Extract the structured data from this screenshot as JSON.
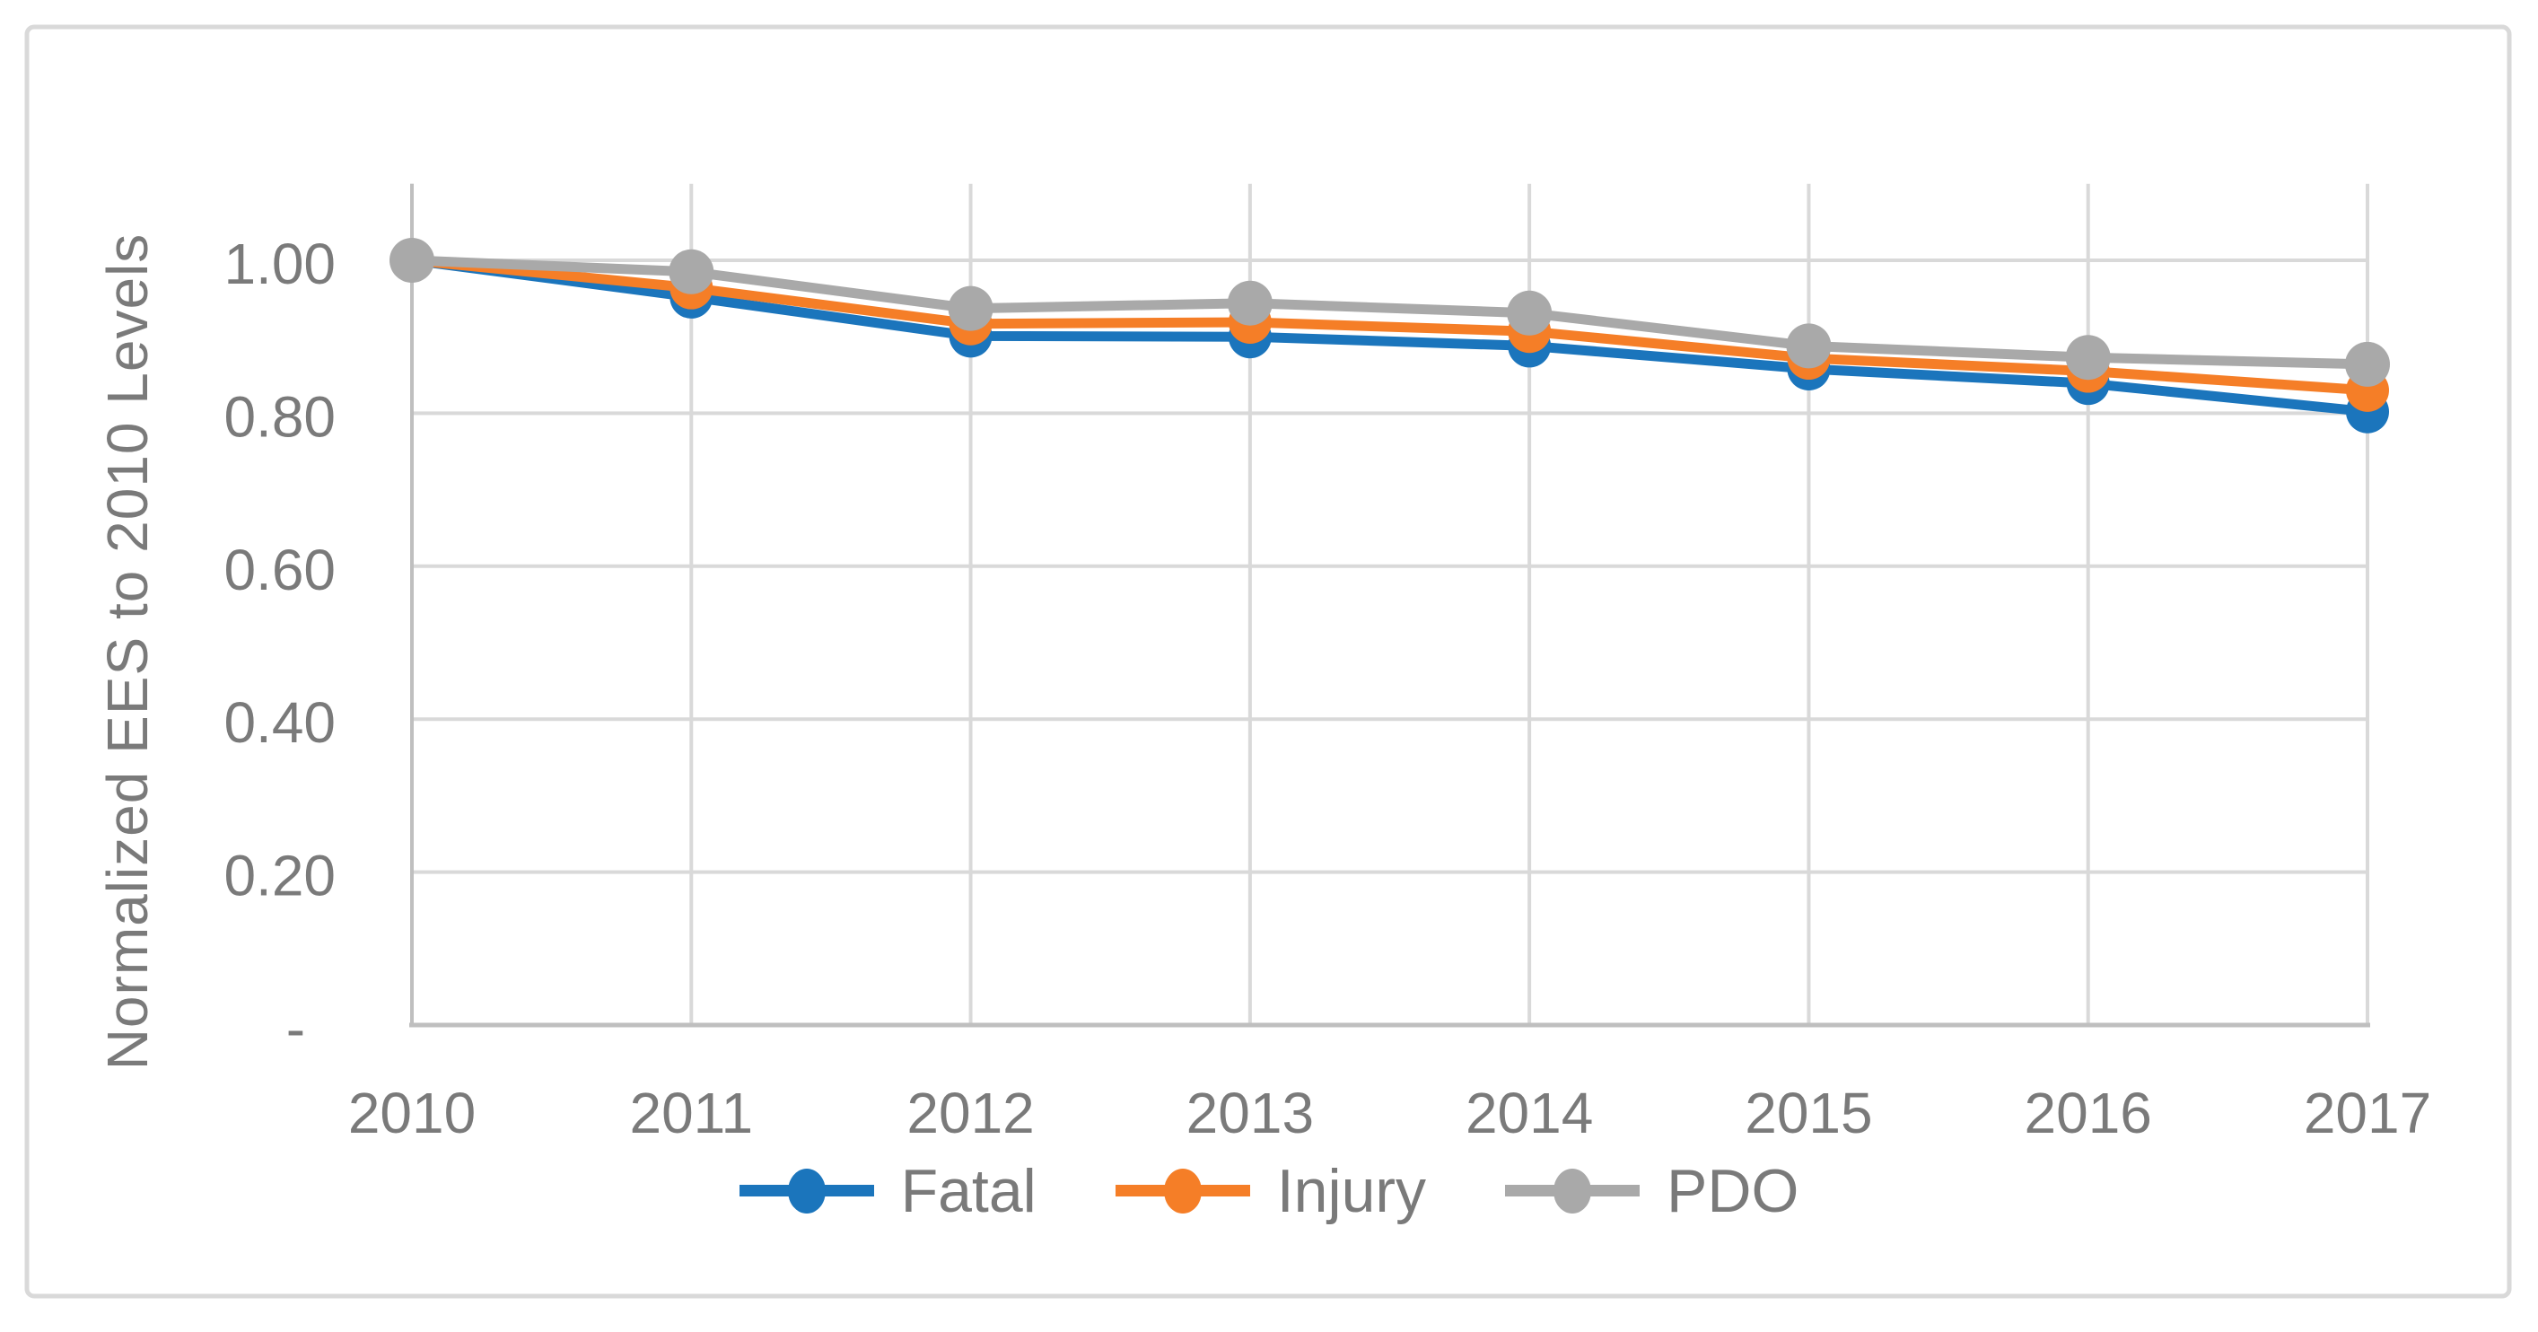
{
  "figure": {
    "background": "#ffffff",
    "border_color": "#d9d9d9"
  },
  "chart_data": {
    "type": "line",
    "title": "",
    "xlabel": "",
    "ylabel": "Normalized EES to 2010 Levels",
    "categories": [
      "2010",
      "2011",
      "2012",
      "2013",
      "2014",
      "2015",
      "2016",
      "2017"
    ],
    "series": [
      {
        "name": "Fatal",
        "color": "#1b75bc",
        "marker": "circle",
        "marker_radius": 24,
        "values": [
          1.0,
          0.952,
          0.901,
          0.9,
          0.888,
          0.858,
          0.839,
          0.802
        ]
      },
      {
        "name": "Injury",
        "color": "#f57e27",
        "marker": "circle",
        "marker_radius": 24,
        "values": [
          1.0,
          0.964,
          0.917,
          0.919,
          0.907,
          0.872,
          0.855,
          0.83
        ]
      },
      {
        "name": "PDO",
        "color": "#a9a9a9",
        "marker": "circle",
        "marker_radius": 25,
        "values": [
          1.0,
          0.985,
          0.937,
          0.944,
          0.931,
          0.888,
          0.873,
          0.864
        ]
      }
    ],
    "ylim": [
      0,
      1.1
    ],
    "yticks": [
      {
        "label": "1.00",
        "value": 1.0
      },
      {
        "label": "0.80",
        "value": 0.8
      },
      {
        "label": "0.60",
        "value": 0.6
      },
      {
        "label": "0.40",
        "value": 0.4
      },
      {
        "label": "0.20",
        "value": 0.2
      },
      {
        "label": "-",
        "value": 0.0
      }
    ],
    "grid": true,
    "grid_color": "#d9d9d9",
    "axis_color": "#bfbfbf",
    "text_color": "#7a7a7a",
    "legend_position": "bottom"
  }
}
